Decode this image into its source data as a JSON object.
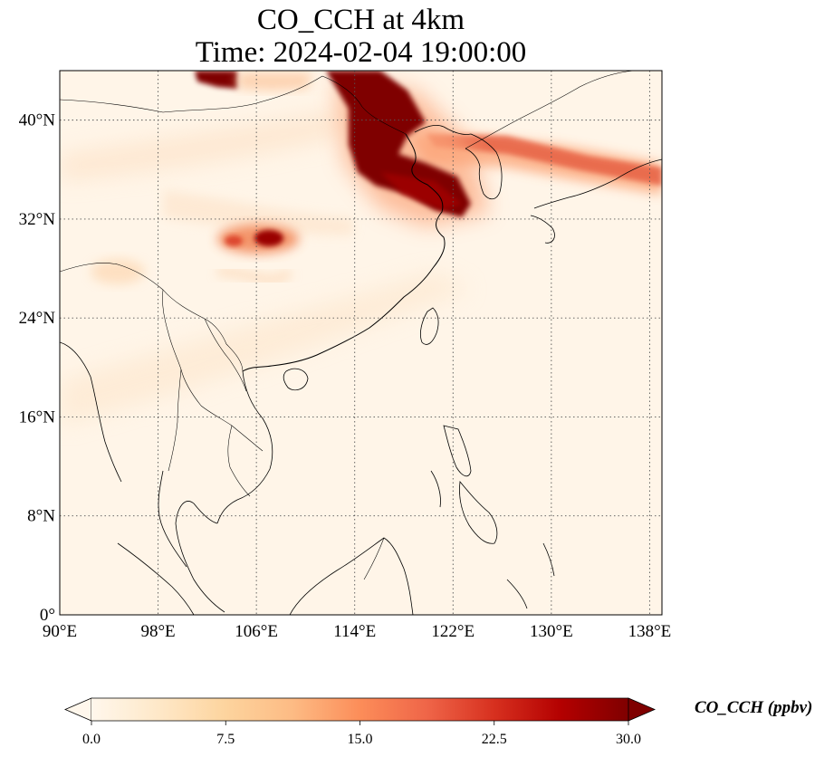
{
  "title": {
    "line1": "CO_CCH at 4km",
    "line2": "Time: 2024-02-04 19:00:00"
  },
  "map": {
    "projection": "PlateCarree",
    "lon_range": [
      90,
      139
    ],
    "lat_range": [
      0,
      44
    ],
    "lon_ticks": [
      {
        "value": 90,
        "label": "90°E"
      },
      {
        "value": 98,
        "label": "98°E"
      },
      {
        "value": 106,
        "label": "106°E"
      },
      {
        "value": 114,
        "label": "114°E"
      },
      {
        "value": 122,
        "label": "122°E"
      },
      {
        "value": 130,
        "label": "130°E"
      },
      {
        "value": 138,
        "label": "138°E"
      }
    ],
    "lat_ticks": [
      {
        "value": 0,
        "label": "0°"
      },
      {
        "value": 8,
        "label": "8°N"
      },
      {
        "value": 16,
        "label": "16°N"
      },
      {
        "value": 24,
        "label": "24°N"
      },
      {
        "value": 32,
        "label": "32°N"
      },
      {
        "value": 40,
        "label": "40°N"
      }
    ],
    "gridlines": "dotted",
    "features": [
      "coastlines",
      "country borders"
    ]
  },
  "colorbar": {
    "label": "CO_CCH (ppbv)",
    "colormap": "OrRd",
    "range": [
      0,
      30
    ],
    "extend": "both",
    "ticks": [
      {
        "value": 0,
        "label": "0.0"
      },
      {
        "value": 7.5,
        "label": "7.5"
      },
      {
        "value": 15,
        "label": "15.0"
      },
      {
        "value": 22.5,
        "label": "22.5"
      },
      {
        "value": 30,
        "label": "30.0"
      }
    ],
    "colors": [
      "#fff7ec",
      "#fee8c8",
      "#fdd49e",
      "#fdbb84",
      "#fc8d59",
      "#ef6548",
      "#d7301f",
      "#b30000",
      "#7f0000"
    ]
  },
  "plumes": [
    {
      "name": "northern China band",
      "lon": [
        114,
        118
      ],
      "lat": [
        34,
        44
      ],
      "value": 30
    },
    {
      "name": "Bohai / Shandong plume",
      "lon": [
        116,
        122
      ],
      "lat": [
        33,
        38
      ],
      "value": 30
    },
    {
      "name": "Korea–Japan band",
      "lon": [
        121,
        139
      ],
      "lat": [
        35,
        40
      ],
      "value": 20
    },
    {
      "name": "Mongolia patch",
      "lon": [
        101,
        104
      ],
      "lat": [
        43,
        44
      ],
      "value": 30
    },
    {
      "name": "Sichuan patch",
      "lon": [
        103,
        108
      ],
      "lat": [
        30,
        31.5
      ],
      "value": 27
    }
  ]
}
